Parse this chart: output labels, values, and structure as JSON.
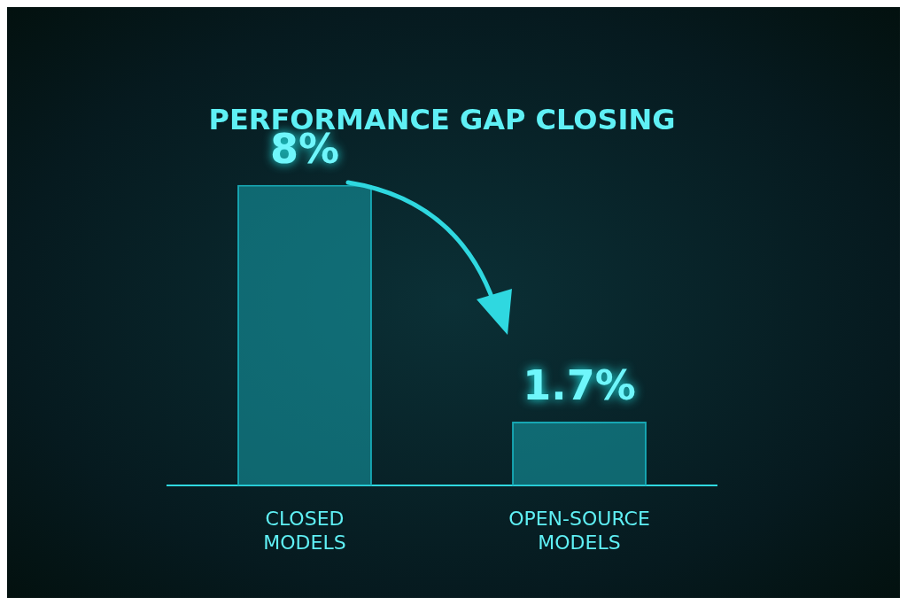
{
  "chart_data": {
    "type": "bar",
    "title": "PERFORMANCE GAP CLOSING",
    "categories": [
      "CLOSED MODELS",
      "OPEN-SOURCE MODELS"
    ],
    "values": [
      8,
      1.7
    ],
    "value_labels": [
      "8%",
      "1.7%"
    ],
    "color": "#17a7b3",
    "tick_labels": "x"
  }
}
